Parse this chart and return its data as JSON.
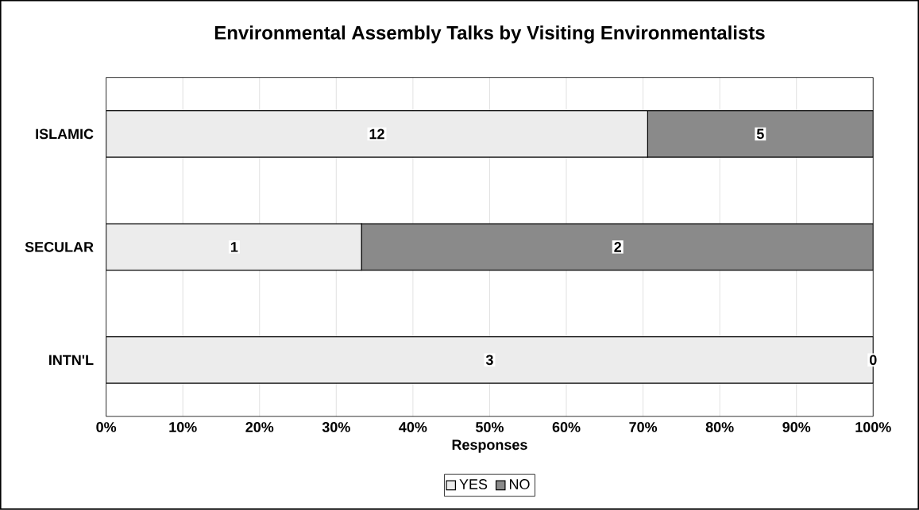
{
  "chart_data": {
    "type": "bar",
    "orientation": "horizontal",
    "stacked": true,
    "title": "Environmental Assembly Talks by Visiting Environmentalists",
    "xlabel": "Responses",
    "categories": [
      "ISLAMIC",
      "SECULAR",
      "INTN'L"
    ],
    "series": [
      {
        "name": "YES",
        "color": "#ececec",
        "values": [
          70.6,
          33.3,
          100
        ]
      },
      {
        "name": "NO",
        "color": "#8a8a8a",
        "values": [
          29.4,
          66.7,
          0
        ]
      }
    ],
    "annotations": [
      {
        "text": "12",
        "x": 35.3,
        "y": "ISLAMIC"
      },
      {
        "text": "5",
        "x": 85.3,
        "y": "ISLAMIC"
      },
      {
        "text": "1",
        "x": 16.7,
        "y": "SECULAR"
      },
      {
        "text": "2",
        "x": 66.7,
        "y": "SECULAR"
      },
      {
        "text": "3",
        "x": 50,
        "y": "INTN'L"
      },
      {
        "text": "0",
        "x": 100,
        "y": "INTN'L"
      }
    ],
    "xlim": [
      0,
      100
    ],
    "xticks": [
      {
        "value": 0,
        "label": "0%"
      },
      {
        "value": 10,
        "label": "10%"
      },
      {
        "value": 20,
        "label": "20%"
      },
      {
        "value": 30,
        "label": "30%"
      },
      {
        "value": 40,
        "label": "40%"
      },
      {
        "value": 50,
        "label": "50%"
      },
      {
        "value": 60,
        "label": "60%"
      },
      {
        "value": 70,
        "label": "70%"
      },
      {
        "value": 80,
        "label": "80%"
      },
      {
        "value": 90,
        "label": "90%"
      },
      {
        "value": 100,
        "label": "100%"
      }
    ],
    "grid": "x",
    "legend": "bottom"
  }
}
